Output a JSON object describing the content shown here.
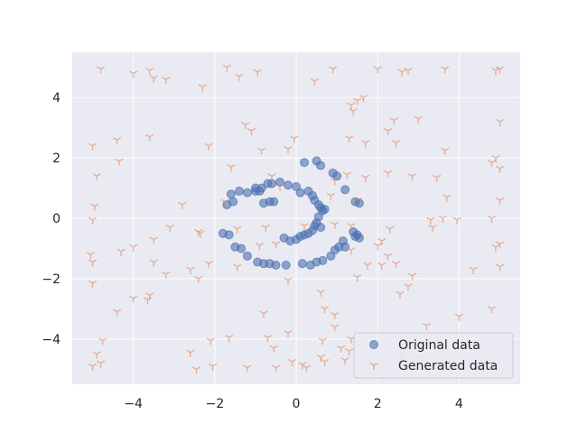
{
  "chart_data": {
    "type": "scatter",
    "title": "",
    "xlabel": "",
    "ylabel": "",
    "xlim": [
      -5.5,
      5.5
    ],
    "ylim": [
      -5.5,
      5.5
    ],
    "xticks": [
      -4,
      -2,
      0,
      2,
      4
    ],
    "yticks": [
      -4,
      -2,
      0,
      2,
      4
    ],
    "xtick_labels": [
      "−4",
      "−2",
      "0",
      "2",
      "4"
    ],
    "ytick_labels": [
      "−4",
      "−2",
      "0",
      "2",
      "4"
    ],
    "grid": true,
    "legend_position": "lower-right",
    "colors": {
      "background": "#eaeaf2",
      "grid": "#ffffff",
      "original": "#4c72b0",
      "generated": "#dd8452"
    },
    "series": [
      {
        "name": "Original data",
        "marker": "circle",
        "points": [
          [
            -1.6,
            0.8
          ],
          [
            -1.4,
            0.9
          ],
          [
            -1.2,
            0.85
          ],
          [
            -1.0,
            0.9
          ],
          [
            -0.85,
            1.0
          ],
          [
            -0.6,
            1.15
          ],
          [
            -0.4,
            1.2
          ],
          [
            -0.2,
            1.1
          ],
          [
            0.0,
            1.05
          ],
          [
            -1.7,
            0.45
          ],
          [
            -1.55,
            0.55
          ],
          [
            -1.8,
            -0.5
          ],
          [
            -1.65,
            -0.55
          ],
          [
            -1.5,
            -0.95
          ],
          [
            -1.35,
            -1.0
          ],
          [
            -1.2,
            -1.25
          ],
          [
            -0.95,
            -1.45
          ],
          [
            -0.8,
            -1.5
          ],
          [
            -0.65,
            -1.5
          ],
          [
            -0.5,
            -1.55
          ],
          [
            -0.9,
            0.9
          ],
          [
            -0.7,
            1.15
          ],
          [
            -0.8,
            0.5
          ],
          [
            -0.65,
            0.55
          ],
          [
            -1.0,
            1.0
          ],
          [
            -0.55,
            0.55
          ],
          [
            0.2,
            1.85
          ],
          [
            0.5,
            1.9
          ],
          [
            0.6,
            1.75
          ],
          [
            0.9,
            1.5
          ],
          [
            1.0,
            1.4
          ],
          [
            1.2,
            0.95
          ],
          [
            1.45,
            0.55
          ],
          [
            1.55,
            0.5
          ],
          [
            0.1,
            0.85
          ],
          [
            0.3,
            0.9
          ],
          [
            0.4,
            0.75
          ],
          [
            0.45,
            0.6
          ],
          [
            0.55,
            0.45
          ],
          [
            0.6,
            0.35
          ],
          [
            0.65,
            0.25
          ],
          [
            0.7,
            0.3
          ],
          [
            0.55,
            0.05
          ],
          [
            0.5,
            -0.15
          ],
          [
            0.45,
            -0.25
          ],
          [
            0.6,
            -0.3
          ],
          [
            0.4,
            -0.4
          ],
          [
            -0.3,
            -0.65
          ],
          [
            -0.15,
            -0.75
          ],
          [
            0.0,
            -0.7
          ],
          [
            0.1,
            -0.6
          ],
          [
            0.2,
            -0.55
          ],
          [
            0.3,
            -0.5
          ],
          [
            -0.25,
            -1.55
          ],
          [
            0.15,
            -1.5
          ],
          [
            0.35,
            -1.55
          ],
          [
            0.5,
            -1.45
          ],
          [
            0.65,
            -1.4
          ],
          [
            0.85,
            -1.25
          ],
          [
            0.95,
            -1.05
          ],
          [
            1.05,
            -0.95
          ],
          [
            1.15,
            -0.75
          ],
          [
            1.2,
            -0.95
          ],
          [
            1.4,
            -0.45
          ],
          [
            1.5,
            -0.55
          ],
          [
            1.55,
            -0.65
          ],
          [
            1.45,
            -0.6
          ]
        ]
      },
      {
        "name": "Generated data",
        "marker": "tri_down",
        "points": [
          [
            -4.8,
            4.95
          ],
          [
            -4.0,
            4.8
          ],
          [
            -3.6,
            4.9
          ],
          [
            -3.5,
            4.65
          ],
          [
            -3.2,
            4.6
          ],
          [
            -2.3,
            4.35
          ],
          [
            -1.7,
            5.0
          ],
          [
            -1.4,
            4.7
          ],
          [
            -0.95,
            4.85
          ],
          [
            0.45,
            4.55
          ],
          [
            0.9,
            4.95
          ],
          [
            2.0,
            4.95
          ],
          [
            2.6,
            4.85
          ],
          [
            2.75,
            4.9
          ],
          [
            3.65,
            4.95
          ],
          [
            4.9,
            4.9
          ],
          [
            5.0,
            4.95
          ],
          [
            1.5,
            3.9
          ],
          [
            1.65,
            4.0
          ],
          [
            1.35,
            3.75
          ],
          [
            1.4,
            3.55
          ],
          [
            2.4,
            3.25
          ],
          [
            3.0,
            3.3
          ],
          [
            5.0,
            3.2
          ],
          [
            -1.25,
            3.1
          ],
          [
            -1.1,
            2.9
          ],
          [
            -4.4,
            2.6
          ],
          [
            -3.6,
            2.7
          ],
          [
            -5.0,
            2.4
          ],
          [
            -2.15,
            2.4
          ],
          [
            -0.85,
            2.25
          ],
          [
            -0.2,
            2.3
          ],
          [
            -0.05,
            2.65
          ],
          [
            1.3,
            2.65
          ],
          [
            1.7,
            2.5
          ],
          [
            2.25,
            2.9
          ],
          [
            2.45,
            2.5
          ],
          [
            3.65,
            2.25
          ],
          [
            4.8,
            1.85
          ],
          [
            5.0,
            1.65
          ],
          [
            -4.35,
            1.9
          ],
          [
            -4.9,
            1.4
          ],
          [
            -1.6,
            1.7
          ],
          [
            -0.6,
            1.4
          ],
          [
            0.95,
            1.25
          ],
          [
            1.25,
            1.45
          ],
          [
            1.7,
            1.35
          ],
          [
            2.25,
            1.5
          ],
          [
            2.85,
            1.4
          ],
          [
            3.45,
            1.35
          ],
          [
            4.9,
            2.0
          ],
          [
            -4.95,
            0.4
          ],
          [
            -2.8,
            0.45
          ],
          [
            -1.75,
            0.55
          ],
          [
            -0.4,
            1.05
          ],
          [
            0.85,
            0.75
          ],
          [
            1.5,
            0.6
          ],
          [
            3.7,
            0.7
          ],
          [
            5.0,
            0.6
          ],
          [
            -5.0,
            -0.05
          ],
          [
            -3.1,
            -0.3
          ],
          [
            -2.4,
            -0.45
          ],
          [
            -1.45,
            -0.35
          ],
          [
            -0.75,
            -0.3
          ],
          [
            0.2,
            -0.25
          ],
          [
            0.95,
            -0.2
          ],
          [
            1.35,
            -0.25
          ],
          [
            2.3,
            -0.35
          ],
          [
            3.3,
            -0.05
          ],
          [
            3.35,
            -0.3
          ],
          [
            3.6,
            0.0
          ],
          [
            3.95,
            -0.05
          ],
          [
            4.8,
            0.0
          ],
          [
            5.0,
            -0.85
          ],
          [
            -3.5,
            -0.7
          ],
          [
            -4.0,
            -0.95
          ],
          [
            -4.3,
            -1.1
          ],
          [
            -2.35,
            -0.5
          ],
          [
            -0.9,
            -0.9
          ],
          [
            -0.5,
            -0.85
          ],
          [
            1.35,
            -1.05
          ],
          [
            2.1,
            -0.75
          ],
          [
            2.0,
            -0.9
          ],
          [
            2.25,
            -1.25
          ],
          [
            1.75,
            -1.55
          ],
          [
            2.45,
            -1.5
          ],
          [
            4.9,
            -0.95
          ],
          [
            -5.05,
            -1.2
          ],
          [
            -5.0,
            -1.45
          ],
          [
            -3.5,
            -1.45
          ],
          [
            -2.15,
            -1.5
          ],
          [
            -3.2,
            -1.85
          ],
          [
            -2.6,
            -1.7
          ],
          [
            -2.4,
            -2.0
          ],
          [
            -1.45,
            -1.6
          ],
          [
            -0.2,
            -2.05
          ],
          [
            1.5,
            -1.95
          ],
          [
            2.1,
            -1.55
          ],
          [
            2.85,
            -1.9
          ],
          [
            4.35,
            -1.7
          ],
          [
            5.0,
            -1.6
          ],
          [
            -5.0,
            -2.15
          ],
          [
            -4.0,
            -2.65
          ],
          [
            -3.6,
            -2.55
          ],
          [
            -3.65,
            -2.7
          ],
          [
            -4.4,
            -3.1
          ],
          [
            -0.8,
            -3.15
          ],
          [
            0.6,
            -2.45
          ],
          [
            0.7,
            -3.0
          ],
          [
            0.95,
            -3.2
          ],
          [
            2.55,
            -2.5
          ],
          [
            2.75,
            -2.25
          ],
          [
            4.8,
            -3.0
          ],
          [
            -4.75,
            -4.05
          ],
          [
            -4.9,
            -4.5
          ],
          [
            -5.0,
            -4.9
          ],
          [
            -4.8,
            -4.8
          ],
          [
            -2.6,
            -4.45
          ],
          [
            -2.1,
            -4.05
          ],
          [
            -1.65,
            -3.95
          ],
          [
            -0.7,
            -3.95
          ],
          [
            -0.55,
            -4.3
          ],
          [
            -0.2,
            -3.8
          ],
          [
            0.65,
            -4.05
          ],
          [
            0.95,
            -3.6
          ],
          [
            1.1,
            -4.3
          ],
          [
            1.35,
            -4.0
          ],
          [
            2.6,
            -4.55
          ],
          [
            3.2,
            -3.55
          ],
          [
            4.0,
            -3.25
          ],
          [
            -2.45,
            -5.0
          ],
          [
            -2.05,
            -4.9
          ],
          [
            -1.2,
            -4.95
          ],
          [
            -0.5,
            -4.95
          ],
          [
            -0.1,
            -4.75
          ],
          [
            0.15,
            -4.85
          ],
          [
            0.25,
            -4.95
          ],
          [
            0.7,
            -4.75
          ],
          [
            1.2,
            -4.7
          ],
          [
            1.3,
            -4.4
          ],
          [
            0.6,
            -4.6
          ]
        ]
      }
    ]
  },
  "legend": {
    "items": [
      {
        "label": "Original data"
      },
      {
        "label": "Generated data"
      }
    ]
  }
}
